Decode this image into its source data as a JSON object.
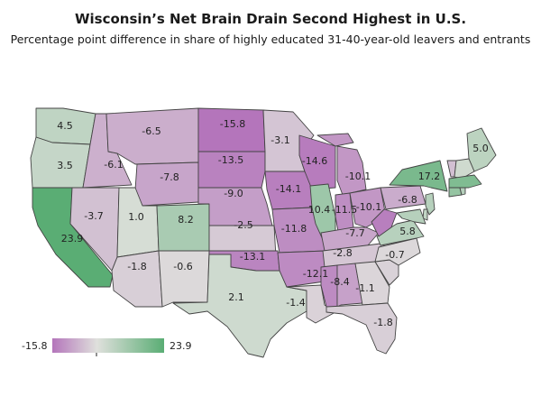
{
  "title": "Wisconsin’s Net Brain Drain Second Highest in U.S.",
  "subtitle": "Percentage point difference in share of highly educated 31-40-year-old leavers and entrants",
  "colors": {
    "negative": "#b475bb",
    "neutral": "#dfe0dc",
    "positive": "#5aad74"
  },
  "legend": {
    "min_label": "-15.8",
    "max_label": "23.9",
    "min": -15.8,
    "max": 23.9
  },
  "states": [
    {
      "id": "WA",
      "label": "4.5",
      "value": 4.5
    },
    {
      "id": "OR",
      "label": "3.5",
      "value": 3.5
    },
    {
      "id": "CA",
      "label": "23.9",
      "value": 23.9
    },
    {
      "id": "NV",
      "label": "-3.7",
      "value": -3.7
    },
    {
      "id": "ID",
      "label": "-6.1",
      "value": -6.1
    },
    {
      "id": "MT",
      "label": "-6.5",
      "value": -6.5
    },
    {
      "id": "WY",
      "label": "-7.8",
      "value": -7.8
    },
    {
      "id": "UT",
      "label": "1.0",
      "value": 1.0
    },
    {
      "id": "AZ",
      "label": "-1.8",
      "value": -1.8
    },
    {
      "id": "NM",
      "label": "-0.6",
      "value": -0.6
    },
    {
      "id": "CO",
      "label": "8.2",
      "value": 8.2
    },
    {
      "id": "ND",
      "label": "-15.8",
      "value": -15.8
    },
    {
      "id": "SD",
      "label": "-13.5",
      "value": -13.5
    },
    {
      "id": "NE",
      "label": "-9.0",
      "value": -9.0
    },
    {
      "id": "KS",
      "label": "-2.5",
      "value": -2.5
    },
    {
      "id": "OK",
      "label": "-13.1",
      "value": -13.1
    },
    {
      "id": "TX",
      "label": "2.1",
      "value": 2.1
    },
    {
      "id": "MN",
      "label": "-3.1",
      "value": -3.1
    },
    {
      "id": "IA",
      "label": "-14.1",
      "value": -14.1
    },
    {
      "id": "MO",
      "label": "-11.8",
      "value": -11.8
    },
    {
      "id": "AR",
      "label": "",
      "value": -12.0
    },
    {
      "id": "LA",
      "label": "-1.4",
      "value": -1.4
    },
    {
      "id": "WI",
      "label": "-14.6",
      "value": -14.6
    },
    {
      "id": "IL",
      "label": "10.4",
      "value": 10.4
    },
    {
      "id": "MI",
      "label": "-10.1",
      "value": -10.1
    },
    {
      "id": "IN",
      "label": "-11.5",
      "value": -11.5
    },
    {
      "id": "OH",
      "label": "-10.1",
      "value": -10.1
    },
    {
      "id": "KY",
      "label": "-7.7",
      "value": -7.7
    },
    {
      "id": "TN",
      "label": "-2.8",
      "value": -2.8
    },
    {
      "id": "MS",
      "label": "-12.1",
      "value": -12.1
    },
    {
      "id": "AL",
      "label": "-8.4",
      "value": -8.4
    },
    {
      "id": "GA",
      "label": "-1.1",
      "value": -1.1
    },
    {
      "id": "FL",
      "label": "-1.8",
      "value": -1.8
    },
    {
      "id": "SC",
      "label": "",
      "value": -1.5
    },
    {
      "id": "NC",
      "label": "-0.7",
      "value": -0.7
    },
    {
      "id": "VA",
      "label": "5.8",
      "value": 5.8
    },
    {
      "id": "WV",
      "label": "",
      "value": -14.0
    },
    {
      "id": "PA",
      "label": "-6.8",
      "value": -6.8
    },
    {
      "id": "NY",
      "label": "17.2",
      "value": 17.2
    },
    {
      "id": "ME",
      "label": "5.0",
      "value": 5.0
    },
    {
      "id": "VT",
      "label": "",
      "value": -4.0
    },
    {
      "id": "NH",
      "label": "",
      "value": 2.0
    },
    {
      "id": "MA",
      "label": "",
      "value": 16.0
    },
    {
      "id": "CT",
      "label": "",
      "value": 12.0
    },
    {
      "id": "RI",
      "label": "",
      "value": 6.0
    },
    {
      "id": "NJ",
      "label": "",
      "value": 6.0
    },
    {
      "id": "DE",
      "label": "",
      "value": 4.0
    },
    {
      "id": "MD",
      "label": "",
      "value": 6.0
    }
  ]
}
